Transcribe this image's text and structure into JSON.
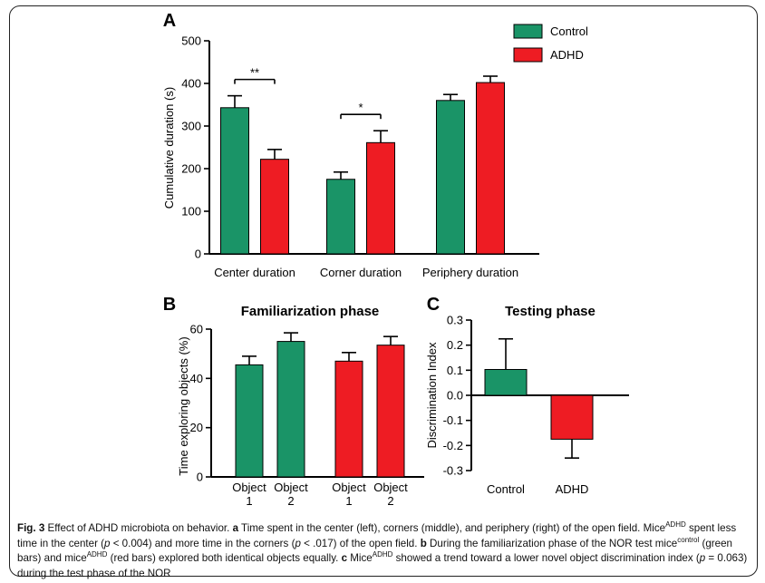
{
  "colors": {
    "control": "#1a9467",
    "adhd": "#ee1c23",
    "axis": "#000000"
  },
  "chart_data": [
    {
      "type": "bar",
      "panel_label": "A",
      "categories": [
        "Center duration",
        "Corner duration",
        "Periphery duration"
      ],
      "series": [
        {
          "name": "Control",
          "values": [
            343,
            175,
            360
          ],
          "errors": [
            28,
            17,
            14
          ]
        },
        {
          "name": "ADHD",
          "values": [
            222,
            261,
            402
          ],
          "errors": [
            23,
            28,
            15
          ]
        }
      ],
      "ylabel": "Cumulative duration (s)",
      "ylim": [
        0,
        500
      ],
      "yticks": [
        "0",
        "100",
        "200",
        "300",
        "400",
        "500"
      ],
      "significance": [
        {
          "category": "Center duration",
          "label": "**"
        },
        {
          "category": "Corner duration",
          "label": "*"
        }
      ],
      "legend_position": "top-right"
    },
    {
      "type": "bar",
      "panel_label": "B",
      "title": "Familiarization phase",
      "categories": [
        "Control Object 1",
        "Control Object 2",
        "ADHD Object 1",
        "ADHD Object 2"
      ],
      "tick_labels": [
        {
          "line1": "Object",
          "line2": "1"
        },
        {
          "line1": "Object",
          "line2": "2"
        },
        {
          "line1": "Object",
          "line2": "1"
        },
        {
          "line1": "Object",
          "line2": "2"
        }
      ],
      "values": [
        45.5,
        55,
        47,
        53.5
      ],
      "errors": [
        3.5,
        3.5,
        3.5,
        3.5
      ],
      "ylabel": "Time exploring objects (%)",
      "ylim": [
        0,
        60
      ],
      "yticks": [
        "0",
        "20",
        "40",
        "60"
      ]
    },
    {
      "type": "bar",
      "panel_label": "C",
      "title": "Testing phase",
      "categories": [
        "Control",
        "ADHD"
      ],
      "values": [
        0.103,
        -0.175
      ],
      "errors": [
        0.122,
        0.075
      ],
      "ylabel": "Discrimination Index",
      "ylim": [
        -0.3,
        0.3
      ],
      "yticks": [
        "0.3",
        "0.2",
        "0.1",
        "0.0",
        "-0.1",
        "-0.2",
        "-0.3"
      ]
    }
  ],
  "caption": {
    "fig_label": "Fig. 3",
    "part1": " Effect of ADHD microbiota on behavior. ",
    "a_label": "a",
    "part2": " Time spent in the center (left), corners (middle), and periphery (right) of the open field. Mice",
    "sup1": "ADHD",
    "part3": " spent less time in the center (",
    "p1": "p",
    "part4": " < 0.004) and more time in the corners (",
    "p2": "p",
    "part5": " < .017) of the open field. ",
    "b_label": "b",
    "part6": " During the familiarization phase of the NOR test mice",
    "sup2": "control",
    "part7": " (green bars) and mice",
    "sup3": "ADHD",
    "part8": " (red bars) explored both identical objects equally. ",
    "c_label": "c",
    "part9": " Mice",
    "sup4": "ADHD",
    "part10": " showed a trend toward a lower novel object discrimination index (",
    "p3": "p",
    "part11": " = 0.063) during the test phase of the NOR"
  }
}
